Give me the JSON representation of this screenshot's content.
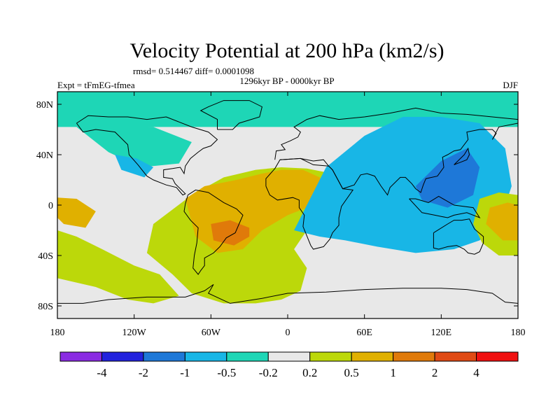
{
  "chart_data": {
    "type": "contour-map",
    "title": "Velocity Potential at 200 hPa (km2/s)",
    "subtitle_stats": "rmsd= 0.514467 diff= 0.0001098",
    "subtitle_period": "1296kyr BP - 0000kyr BP",
    "left_label": "Expt = tFmEG-tfmea",
    "right_label": "DJF",
    "x_ticks": [
      {
        "lon": -180,
        "label": "180"
      },
      {
        "lon": -120,
        "label": "120W"
      },
      {
        "lon": -60,
        "label": "60W"
      },
      {
        "lon": 0,
        "label": "0"
      },
      {
        "lon": 60,
        "label": "60E"
      },
      {
        "lon": 120,
        "label": "120E"
      },
      {
        "lon": 180,
        "label": "180"
      }
    ],
    "y_ticks": [
      {
        "lat": 80,
        "label": "80N"
      },
      {
        "lat": 40,
        "label": "40N"
      },
      {
        "lat": 0,
        "label": "0"
      },
      {
        "lat": -40,
        "label": "40S"
      },
      {
        "lat": -80,
        "label": "80S"
      }
    ],
    "xlim": [
      -180,
      180
    ],
    "ylim": [
      -90,
      90
    ],
    "colorbar": {
      "colors": [
        "#8a2be2",
        "#2222dd",
        "#1e78d8",
        "#18b6e6",
        "#1ed6b6",
        "#e8e8e8",
        "#bcd80a",
        "#e0b000",
        "#e07a0a",
        "#e04a14",
        "#f01010"
      ],
      "labels": [
        "-4",
        "-2",
        "-1",
        "-0.5",
        "-0.2",
        "0.2",
        "0.5",
        "1",
        "2",
        "4"
      ]
    },
    "regions": [
      {
        "name": "arctic-negative",
        "level": 4,
        "lon": [
          -180,
          -180,
          180,
          180
        ],
        "lat": [
          90,
          62,
          62,
          90
        ]
      },
      {
        "name": "n-pacific-negative",
        "level": 4,
        "lon": [
          -165,
          -140,
          -115,
          -85,
          -75,
          -105,
          -145
        ],
        "lat": [
          62,
          42,
          30,
          33,
          50,
          62,
          64
        ]
      },
      {
        "name": "ne-pacific-negative",
        "level": 3,
        "lon": [
          -135,
          -118,
          -105,
          -112,
          -130
        ],
        "lat": [
          40,
          37,
          30,
          22,
          28
        ]
      },
      {
        "name": "atlantic-positive",
        "level": 6,
        "lon": [
          -105,
          -75,
          -50,
          -25,
          -5,
          15,
          35,
          45,
          35,
          15,
          5,
          15,
          10,
          -5,
          -25,
          -50,
          -75,
          -90,
          -110
        ],
        "lat": [
          -15,
          8,
          22,
          28,
          30,
          29,
          25,
          12,
          -5,
          -20,
          -35,
          -50,
          -68,
          -75,
          -78,
          -78,
          -70,
          -55,
          -38
        ]
      },
      {
        "name": "s-pacific-positive",
        "level": 6,
        "lon": [
          -180,
          -165,
          -145,
          -120,
          -100,
          -85,
          -105,
          -125,
          -150,
          -180
        ],
        "lat": [
          -20,
          -25,
          -35,
          -48,
          -55,
          -72,
          -78,
          -75,
          -65,
          -58
        ]
      },
      {
        "name": "sa-africa-orange",
        "level": 7,
        "lon": [
          -80,
          -65,
          -40,
          -20,
          -5,
          12,
          25,
          30,
          20,
          0,
          -20,
          -35,
          -55,
          -72
        ],
        "lat": [
          5,
          15,
          20,
          25,
          28,
          28,
          22,
          12,
          0,
          -8,
          -20,
          -35,
          -38,
          -25
        ]
      },
      {
        "name": "brazil-core",
        "level": 8,
        "lon": [
          -60,
          -45,
          -30,
          -30,
          -42,
          -58
        ],
        "lat": [
          -15,
          -12,
          -18,
          -25,
          -32,
          -28
        ]
      },
      {
        "name": "c-pacific-orange",
        "level": 7,
        "lon": [
          -180,
          -165,
          -150,
          -158,
          -175,
          -180
        ],
        "lat": [
          6,
          5,
          -5,
          -18,
          -15,
          -10
        ]
      },
      {
        "name": "asia-negative",
        "level": 3,
        "lon": [
          5,
          30,
          60,
          90,
          120,
          150,
          170,
          175,
          165,
          150,
          130,
          100,
          70,
          45,
          25
        ],
        "lat": [
          -20,
          30,
          55,
          70,
          70,
          65,
          45,
          15,
          -15,
          -28,
          -35,
          -38,
          -33,
          -28,
          -25
        ]
      },
      {
        "name": "asia-core",
        "level": 2,
        "lon": [
          100,
          120,
          140,
          150,
          145,
          125,
          105
        ],
        "lat": [
          15,
          35,
          45,
          30,
          8,
          -2,
          4
        ]
      },
      {
        "name": "w-pacific-positive",
        "level": 6,
        "lon": [
          150,
          165,
          180,
          180,
          165,
          152,
          145
        ],
        "lat": [
          5,
          10,
          8,
          -40,
          -40,
          -30,
          -15
        ]
      },
      {
        "name": "w-pacific-orange",
        "level": 7,
        "lon": [
          158,
          172,
          180,
          180,
          168,
          155
        ],
        "lat": [
          -2,
          2,
          0,
          -28,
          -28,
          -15
        ]
      }
    ]
  }
}
